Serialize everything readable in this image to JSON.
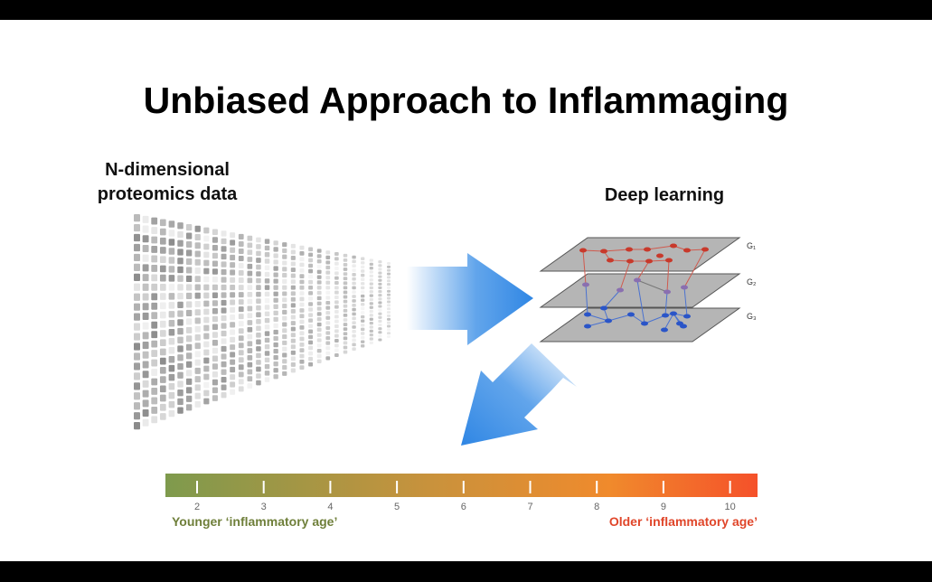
{
  "title": "Unbiased Approach to Inflammaging",
  "left_heading_line1": "N-dimensional",
  "left_heading_line2": "proteomics data",
  "right_heading": "Deep learning",
  "layers": [
    "G₁",
    "G₂",
    "G₃"
  ],
  "colors": {
    "network_top": "#c8392b",
    "network_bottom": "#2a55c8",
    "arrow": "#3a8ee6",
    "scale_start": "#7e9a4d",
    "scale_end": "#f5512a"
  },
  "scale": {
    "ticks": [
      "2",
      "3",
      "4",
      "5",
      "6",
      "7",
      "8",
      "9",
      "10"
    ],
    "left_label": "Younger ‘inflammatory age’",
    "right_label": "Older ‘inflammatory age’",
    "left_label_color": "#6f7f3a",
    "right_label_color": "#e0462a"
  }
}
